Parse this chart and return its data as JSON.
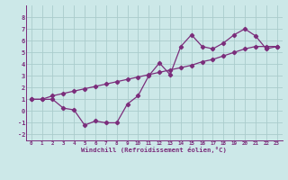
{
  "xlabel": "Windchill (Refroidissement éolien,°C)",
  "line1_x": [
    0,
    1,
    2,
    3,
    4,
    5,
    6,
    7,
    8,
    9,
    10,
    11,
    12,
    13,
    14,
    15,
    16,
    17,
    18,
    19,
    20,
    21,
    22,
    23
  ],
  "line1_y": [
    1.0,
    1.0,
    1.0,
    0.25,
    0.1,
    -1.2,
    -0.85,
    -1.0,
    -1.0,
    0.6,
    1.3,
    3.0,
    4.1,
    3.1,
    5.5,
    6.5,
    5.5,
    5.3,
    5.8,
    6.5,
    7.0,
    6.4,
    5.3,
    5.5
  ],
  "line2_x": [
    0,
    1,
    2,
    3,
    4,
    5,
    6,
    7,
    8,
    9,
    10,
    11,
    12,
    13,
    14,
    15,
    16,
    17,
    18,
    19,
    20,
    21,
    22,
    23
  ],
  "line2_y": [
    1.0,
    1.0,
    1.3,
    1.5,
    1.7,
    1.9,
    2.1,
    2.3,
    2.5,
    2.7,
    2.9,
    3.1,
    3.3,
    3.5,
    3.7,
    3.9,
    4.2,
    4.4,
    4.7,
    5.0,
    5.3,
    5.5,
    5.5,
    5.5
  ],
  "line_color": "#7b2d7b",
  "bg_color": "#cce8e8",
  "grid_color": "#aacccc",
  "xlim": [
    -0.5,
    23.5
  ],
  "ylim": [
    -2.5,
    9.0
  ],
  "yticks": [
    -2,
    -1,
    0,
    1,
    2,
    3,
    4,
    5,
    6,
    7,
    8
  ],
  "xticks": [
    0,
    1,
    2,
    3,
    4,
    5,
    6,
    7,
    8,
    9,
    10,
    11,
    12,
    13,
    14,
    15,
    16,
    17,
    18,
    19,
    20,
    21,
    22,
    23
  ]
}
